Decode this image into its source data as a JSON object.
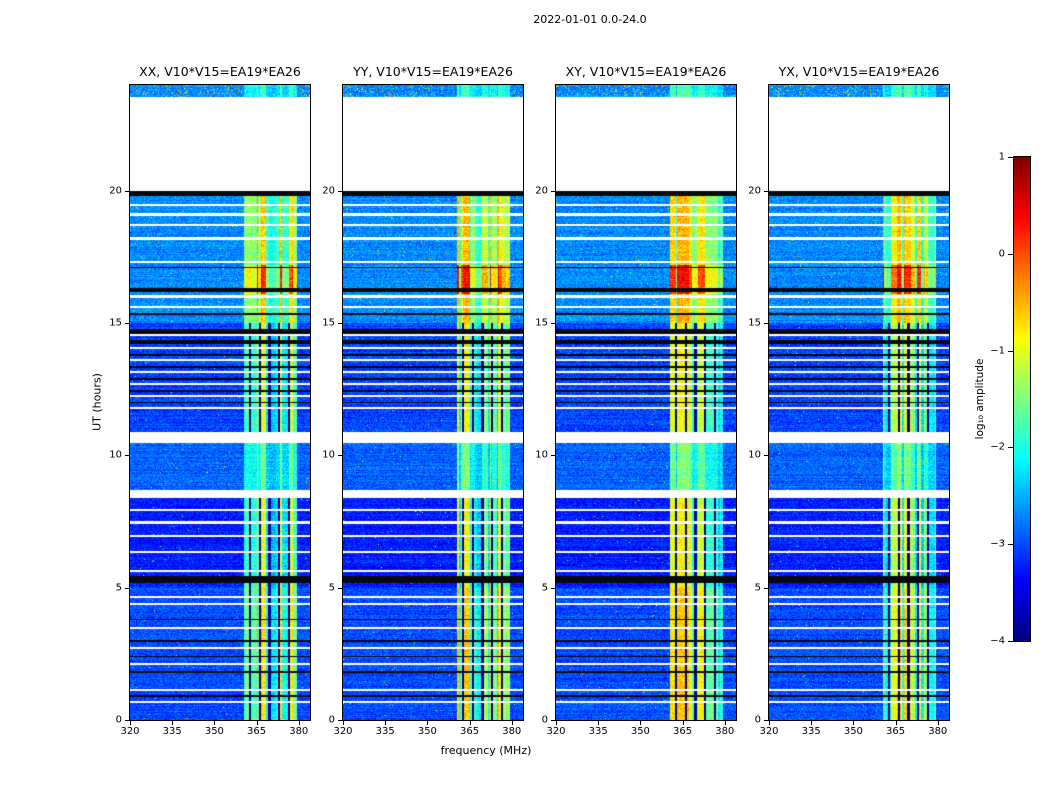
{
  "chart_data": {
    "type": "heatmap",
    "title": "2022-01-01 0.0-24.0",
    "xlabel": "frequency (MHz)",
    "ylabel": "UT (hours)",
    "xlim": [
      320,
      384
    ],
    "ylim": [
      0,
      24
    ],
    "xticks": [
      {
        "v": 320,
        "label": "320"
      },
      {
        "v": 335,
        "label": "335"
      },
      {
        "v": 350,
        "label": "350"
      },
      {
        "v": 365,
        "label": "365"
      },
      {
        "v": 380,
        "label": "380"
      }
    ],
    "yticks": [
      {
        "v": 0,
        "label": "0"
      },
      {
        "v": 5,
        "label": "5"
      },
      {
        "v": 10,
        "label": "10"
      },
      {
        "v": 15,
        "label": "15"
      },
      {
        "v": 20,
        "label": "20"
      }
    ],
    "panels": [
      {
        "title": "XX, V10*V15=EA19*EA26",
        "seed": 101
      },
      {
        "title": "YY, V10*V15=EA19*EA26",
        "seed": 202
      },
      {
        "title": "XY, V10*V15=EA19*EA26",
        "seed": 303
      },
      {
        "title": "YX, V10*V15=EA19*EA26",
        "seed": 404
      }
    ],
    "colorbar": {
      "label": "log₁₀ amplitude",
      "colormap": "jet",
      "vmin": -4,
      "vmax": 1,
      "ticks": [
        {
          "v": 1,
          "label": "1"
        },
        {
          "v": 0,
          "label": "0"
        },
        {
          "v": -1,
          "label": "−1"
        },
        {
          "v": -2,
          "label": "−2"
        },
        {
          "v": -3,
          "label": "−3"
        },
        {
          "v": -4,
          "label": "−4"
        }
      ]
    },
    "time_coverage": {
      "observed": [
        [
          0.0,
          20.0
        ],
        [
          23.55,
          24.0
        ]
      ],
      "gap": [
        20.0,
        23.55
      ]
    },
    "background_regions": [
      {
        "h0": 0,
        "h1": 5,
        "level": -3.0,
        "speckle": 0.003
      },
      {
        "h0": 5,
        "h1": 8.4,
        "level": -3.25,
        "speckle": 0.003
      },
      {
        "h0": 8.4,
        "h1": 10.9,
        "level": -2.9,
        "speckle": 0.004
      },
      {
        "h0": 10.9,
        "h1": 15,
        "level": -3.05,
        "speckle": 0.003
      },
      {
        "h0": 15,
        "h1": 20,
        "level": -2.7,
        "speckle": 0.006
      },
      {
        "h0": 23.55,
        "h1": 24.1,
        "level": -2.7,
        "speckle": 0.06
      }
    ],
    "rfi_band": {
      "f0": 360.5,
      "f1": 379.5,
      "separators": [
        362.8,
        366.2,
        369.6,
        373.0,
        376.4
      ],
      "time_strength": [
        {
          "h0": 0,
          "h1": 8.4,
          "amp": 2.2,
          "grid": true
        },
        {
          "h0": 8.4,
          "h1": 10.9,
          "amp": 1.3,
          "grid": false
        },
        {
          "h0": 10.9,
          "h1": 15,
          "amp": 2.0,
          "grid": true
        },
        {
          "h0": 15,
          "h1": 16.1,
          "amp": 2.0,
          "grid": false
        },
        {
          "h0": 16.1,
          "h1": 17.2,
          "amp": 2.8,
          "grid": false
        },
        {
          "h0": 17.2,
          "h1": 20,
          "amp": 2.0,
          "grid": false
        },
        {
          "h0": 23.55,
          "h1": 24.1,
          "amp": 0.9,
          "grid": false
        }
      ]
    },
    "white_stripes": [
      [
        0.68,
        0.09
      ],
      [
        1.13,
        0.09
      ],
      [
        2.12,
        0.07
      ],
      [
        2.72,
        0.09
      ],
      [
        3.48,
        0.09
      ],
      [
        4.38,
        0.09
      ],
      [
        4.65,
        0.07
      ],
      [
        5.63,
        0.11
      ],
      [
        6.35,
        0.09
      ],
      [
        6.95,
        0.07
      ],
      [
        7.48,
        0.11
      ],
      [
        7.94,
        0.07
      ],
      [
        8.55,
        0.32
      ],
      [
        10.68,
        0.42
      ],
      [
        11.8,
        0.09
      ],
      [
        12.25,
        0.07
      ],
      [
        12.7,
        0.07
      ],
      [
        13.15,
        0.07
      ],
      [
        13.6,
        0.07
      ],
      [
        14.06,
        0.07
      ],
      [
        14.55,
        0.09
      ],
      [
        15.6,
        0.07
      ],
      [
        16.0,
        0.11
      ],
      [
        17.3,
        0.09
      ],
      [
        18.2,
        0.11
      ],
      [
        18.7,
        0.09
      ],
      [
        19.1,
        0.09
      ],
      [
        19.45,
        0.07
      ]
    ],
    "black_stripes": [
      [
        0.9,
        0.07
      ],
      [
        1.8,
        0.07
      ],
      [
        2.4,
        0.07
      ],
      [
        3.0,
        0.07
      ],
      [
        3.8,
        0.07
      ],
      [
        5.32,
        0.26
      ],
      [
        12.0,
        0.07
      ],
      [
        12.45,
        0.07
      ],
      [
        12.9,
        0.07
      ],
      [
        13.35,
        0.07
      ],
      [
        13.8,
        0.07
      ],
      [
        14.28,
        0.16
      ],
      [
        14.68,
        0.2
      ],
      [
        15.35,
        0.06
      ],
      [
        16.25,
        0.16
      ],
      [
        17.1,
        0.07
      ],
      [
        19.9,
        0.22
      ]
    ]
  }
}
